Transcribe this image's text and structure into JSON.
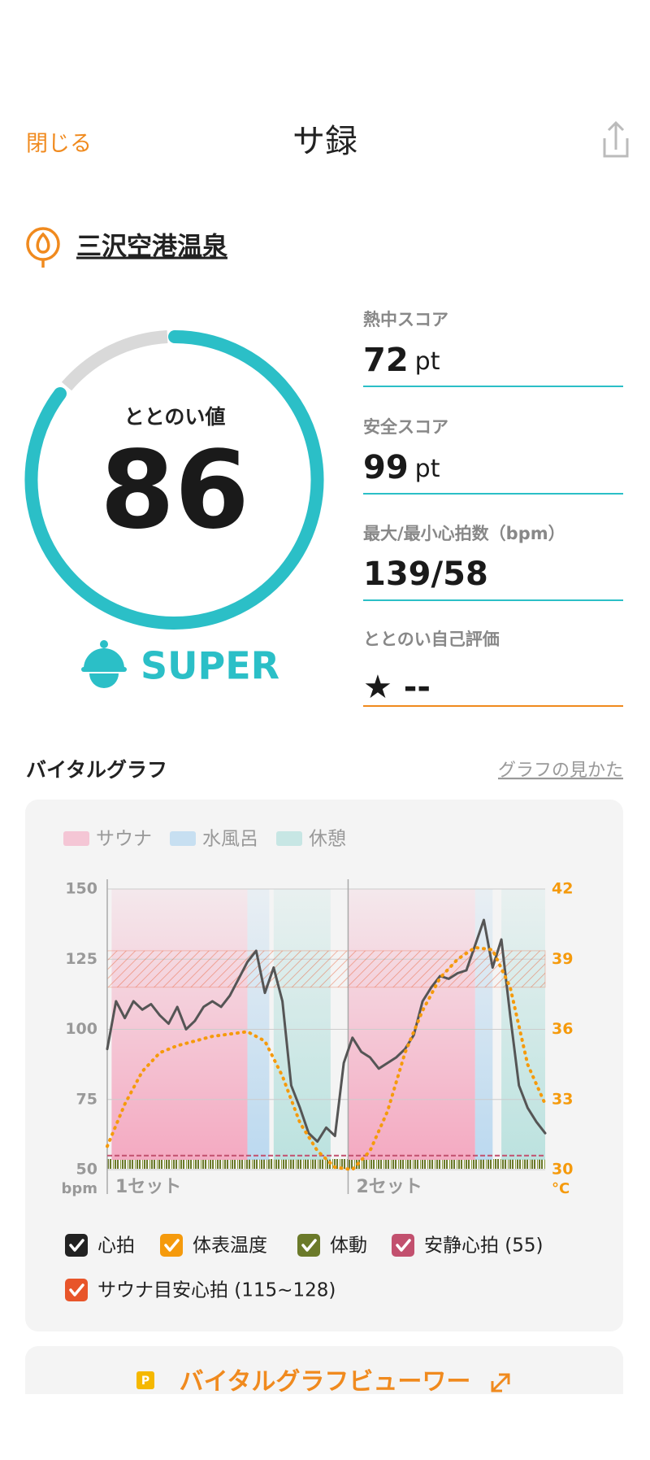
{
  "header": {
    "close": "閉じる",
    "title": "サ録"
  },
  "venue": "三沢空港温泉",
  "score": {
    "label": "ととのい値",
    "value": 86,
    "rank": "SUPER"
  },
  "stats": [
    {
      "label": "熱中スコア",
      "value": 72,
      "unit": "pt"
    },
    {
      "label": "安全スコア",
      "value": 99,
      "unit": "pt"
    },
    {
      "label": "最大/最小心拍数（bpm）",
      "value": "139/58"
    },
    {
      "label": "ととのい自己評価",
      "value": "★ --"
    }
  ],
  "section": {
    "title": "バイタルグラフ",
    "help_link": "グラフの見かた",
    "viewer_button": "バイタルグラフビューワー"
  },
  "chart_data": {
    "type": "line",
    "zones": [
      {
        "name": "サウナ",
        "color": "#f4a6bf"
      },
      {
        "name": "水風呂",
        "color": "#a9d0ee"
      },
      {
        "name": "休憩",
        "color": "#a9dcd8"
      }
    ],
    "phases": [
      {
        "zone": 0,
        "start": 1,
        "end": 32
      },
      {
        "zone": 1,
        "start": 32,
        "end": 37
      },
      {
        "zone": 2,
        "start": 38,
        "end": 51
      },
      {
        "zone": 0,
        "start": 55,
        "end": 84
      },
      {
        "zone": 1,
        "start": 84,
        "end": 88
      },
      {
        "zone": 2,
        "start": 90,
        "end": 100
      }
    ],
    "sets": [
      {
        "label": "1セット",
        "x": 0
      },
      {
        "label": "2セット",
        "x": 55
      }
    ],
    "xlim": [
      0,
      100
    ],
    "ylim": [
      50,
      150
    ],
    "yticks": [
      50,
      75,
      100,
      125,
      150
    ],
    "y_unit": "bpm",
    "y2lim": [
      30,
      42
    ],
    "y2ticks": [
      30,
      33,
      36,
      39,
      42
    ],
    "y2_unit": "°C",
    "series": [
      {
        "name": "心拍",
        "color": "#555555",
        "x": [
          0,
          2,
          4,
          6,
          8,
          10,
          12,
          14,
          16,
          18,
          20,
          22,
          24,
          26,
          28,
          30,
          32,
          34,
          36,
          38,
          40,
          42,
          44,
          46,
          48,
          50,
          52,
          54,
          56,
          58,
          60,
          62,
          64,
          66,
          68,
          70,
          72,
          74,
          76,
          78,
          80,
          82,
          84,
          86,
          88,
          90,
          92,
          94,
          96,
          98,
          100
        ],
        "values": [
          93,
          110,
          104,
          110,
          107,
          109,
          105,
          102,
          108,
          100,
          103,
          108,
          110,
          108,
          112,
          118,
          124,
          128,
          113,
          122,
          110,
          80,
          72,
          63,
          60,
          65,
          62,
          88,
          97,
          92,
          90,
          86,
          88,
          90,
          93,
          98,
          110,
          115,
          119,
          118,
          120,
          121,
          130,
          139,
          122,
          132,
          105,
          80,
          72,
          67,
          63
        ]
      },
      {
        "name": "体表温度",
        "color": "#f59a0c",
        "axis": "y2",
        "x": [
          0,
          4,
          8,
          12,
          16,
          20,
          24,
          28,
          32,
          36,
          40,
          44,
          48,
          52,
          56,
          60,
          64,
          68,
          72,
          76,
          80,
          84,
          88,
          92,
          96,
          100
        ],
        "values": [
          31.0,
          32.8,
          34.2,
          35.0,
          35.3,
          35.5,
          35.7,
          35.8,
          35.9,
          35.5,
          34.0,
          32.0,
          30.8,
          30.1,
          30.0,
          30.8,
          32.5,
          35.0,
          36.8,
          38.2,
          39.0,
          39.5,
          39.4,
          37.8,
          34.5,
          32.8
        ]
      }
    ],
    "resting_hr": 55,
    "target_range": [
      115,
      128
    ],
    "legend": [
      {
        "label": "心拍",
        "color": "#222222"
      },
      {
        "label": "体表温度",
        "color": "#f59a0c"
      },
      {
        "label": "体動",
        "color": "#6b7a2a"
      },
      {
        "label": "安静心拍 (55)",
        "color": "#c2506e"
      },
      {
        "label": "サウナ目安心拍 (115~128)",
        "color": "#e8552a"
      }
    ]
  }
}
